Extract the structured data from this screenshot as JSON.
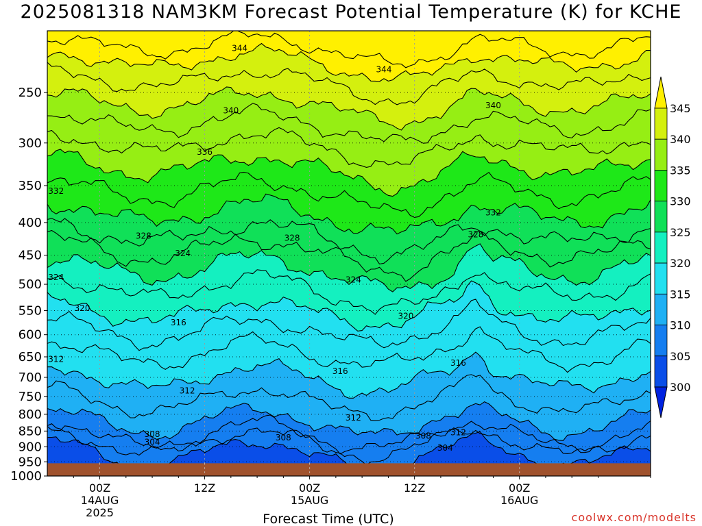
{
  "title": "2025081318 NAM3KM Forecast Potential Temperature (K) for KCHE",
  "credit": "coolwx.com/modelts",
  "chart_data": {
    "type": "heatmap",
    "title": "2025081318 NAM3KM Forecast Potential Temperature (K) for KCHE",
    "xlabel": "Forecast Time (UTC)",
    "ylabel": "",
    "x_range_hours": [
      -6,
      63
    ],
    "y_scale": "log-pressure",
    "y_range_hPa": [
      1000,
      200
    ],
    "y_ticks": [
      "250",
      "300",
      "350",
      "400",
      "450",
      "500",
      "550",
      "600",
      "650",
      "700",
      "750",
      "800",
      "850",
      "900",
      "950",
      "1000"
    ],
    "x_ticks": [
      {
        "hour": 0,
        "lines": [
          "00Z",
          "14AUG",
          "2025"
        ]
      },
      {
        "hour": 12,
        "lines": [
          "12Z"
        ]
      },
      {
        "hour": 24,
        "lines": [
          "00Z",
          "15AUG"
        ]
      },
      {
        "hour": 36,
        "lines": [
          "12Z"
        ]
      },
      {
        "hour": 48,
        "lines": [
          "00Z",
          "16AUG"
        ]
      }
    ],
    "grid": true,
    "colorbar": {
      "position": "right",
      "levels": [
        300,
        305,
        310,
        315,
        320,
        325,
        330,
        335,
        340,
        345
      ],
      "labels": [
        "300",
        "305",
        "310",
        "315",
        "320",
        "325",
        "330",
        "335",
        "340",
        "345"
      ],
      "colors": [
        "#0022e0",
        "#0a4ee8",
        "#157ef0",
        "#1fb0f4",
        "#22e0f0",
        "#14f0c0",
        "#10e058",
        "#1ee818",
        "#96ee14",
        "#d4f00e",
        "#fff000"
      ]
    },
    "ground_level_hPa": 955,
    "ground_color": "#a0522d",
    "contour_interval_K": 2,
    "isentropes": [
      {
        "theta": 304,
        "p": 920
      },
      {
        "theta": 306,
        "p": 885
      },
      {
        "theta": 308,
        "p": 860
      },
      {
        "theta": 310,
        "p": 820
      },
      {
        "theta": 312,
        "p": 760
      },
      {
        "theta": 314,
        "p": 700
      },
      {
        "theta": 316,
        "p": 640
      },
      {
        "theta": 318,
        "p": 590
      },
      {
        "theta": 320,
        "p": 550
      },
      {
        "theta": 322,
        "p": 505
      },
      {
        "theta": 324,
        "p": 470
      },
      {
        "theta": 326,
        "p": 440
      },
      {
        "theta": 328,
        "p": 415
      },
      {
        "theta": 330,
        "p": 385
      },
      {
        "theta": 332,
        "p": 355
      },
      {
        "theta": 334,
        "p": 325
      },
      {
        "theta": 336,
        "p": 300
      },
      {
        "theta": 338,
        "p": 278
      },
      {
        "theta": 340,
        "p": 258
      },
      {
        "theta": 342,
        "p": 238
      },
      {
        "theta": 344,
        "p": 222
      },
      {
        "theta": 346,
        "p": 210
      }
    ],
    "contour_labels": [
      {
        "text": "344",
        "hour": 16,
        "p": 213
      },
      {
        "text": "344",
        "hour": 32.5,
        "p": 230
      },
      {
        "text": "340",
        "hour": 15,
        "p": 267
      },
      {
        "text": "340",
        "hour": 45,
        "p": 262
      },
      {
        "text": "336",
        "hour": 12,
        "p": 310
      },
      {
        "text": "332",
        "hour": -5,
        "p": 357
      },
      {
        "text": "332",
        "hour": 45,
        "p": 386
      },
      {
        "text": "328",
        "hour": 5,
        "p": 420
      },
      {
        "text": "328",
        "hour": 22,
        "p": 423
      },
      {
        "text": "328",
        "hour": 43,
        "p": 418
      },
      {
        "text": "324",
        "hour": 9.5,
        "p": 447
      },
      {
        "text": "324",
        "hour": -5,
        "p": 488
      },
      {
        "text": "324",
        "hour": 29,
        "p": 492
      },
      {
        "text": "320",
        "hour": -2,
        "p": 545
      },
      {
        "text": "320",
        "hour": 35,
        "p": 561
      },
      {
        "text": "316",
        "hour": 9,
        "p": 574
      },
      {
        "text": "316",
        "hour": 27.5,
        "p": 685
      },
      {
        "text": "316",
        "hour": 41,
        "p": 665
      },
      {
        "text": "312",
        "hour": -5,
        "p": 656
      },
      {
        "text": "312",
        "hour": 10,
        "p": 735
      },
      {
        "text": "312",
        "hour": 29,
        "p": 810
      },
      {
        "text": "312",
        "hour": 41,
        "p": 855
      },
      {
        "text": "308",
        "hour": 6,
        "p": 860
      },
      {
        "text": "308",
        "hour": 21,
        "p": 870
      },
      {
        "text": "308",
        "hour": 37,
        "p": 865
      },
      {
        "text": "304",
        "hour": 6,
        "p": 885
      },
      {
        "text": "304",
        "hour": 39.5,
        "p": 903
      }
    ]
  }
}
